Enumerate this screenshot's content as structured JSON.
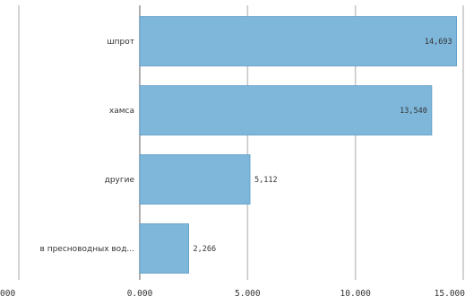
{
  "chart_data": {
    "type": "bar",
    "orientation": "horizontal",
    "categories": [
      "шпрот",
      "хамса",
      "другие",
      "в пресноводных вод..."
    ],
    "values": [
      14693,
      13540,
      5112,
      2266
    ],
    "value_labels": [
      "14,693",
      "13,540",
      "5,112",
      "2,266"
    ],
    "xlim": [
      0,
      15000
    ],
    "x_ticks": [
      0,
      5000,
      10000,
      15000
    ],
    "x_tick_labels": [
      "0.000",
      "5.000",
      "10.000",
      "15.000"
    ],
    "partial_left_tick_label": "000",
    "grid": true,
    "bar_color": "#7fb7db",
    "bar_border_color": "#5a9ac4",
    "grid_color": "#c8c8c8",
    "axis_color": "#999999"
  }
}
